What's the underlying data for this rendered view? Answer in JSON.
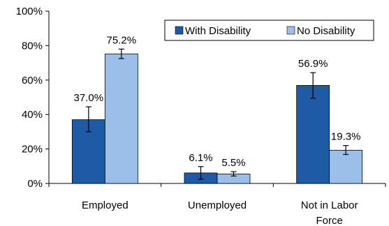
{
  "chart_data": {
    "type": "bar",
    "categories": [
      "Employed",
      "Unemployed",
      "Not in Labor Force"
    ],
    "category_lines": [
      [
        "Employed"
      ],
      [
        "Unemployed"
      ],
      [
        "Not in Labor",
        "Force"
      ]
    ],
    "series": [
      {
        "name": "With Disability",
        "color": "#1f5aa6",
        "values": [
          37.0,
          6.1,
          56.9
        ],
        "labels": [
          "37.0%",
          "6.1%",
          "56.9%"
        ],
        "error_low": [
          30.0,
          2.5,
          49.5
        ],
        "error_high": [
          44.5,
          9.8,
          64.3
        ]
      },
      {
        "name": "No Disability",
        "color": "#9bbfe8",
        "values": [
          75.2,
          5.5,
          19.3
        ],
        "labels": [
          "75.2%",
          "5.5%",
          "19.3%"
        ],
        "error_low": [
          72.5,
          4.3,
          16.8
        ],
        "error_high": [
          78.0,
          6.8,
          22.0
        ]
      }
    ],
    "ylim": [
      0,
      100
    ],
    "yticks": [
      0,
      20,
      40,
      60,
      80,
      100
    ],
    "ytick_labels": [
      "0%",
      "20%",
      "40%",
      "60%",
      "80%",
      "100%"
    ],
    "grid": false,
    "legend": "top-right",
    "error_bars": true
  }
}
